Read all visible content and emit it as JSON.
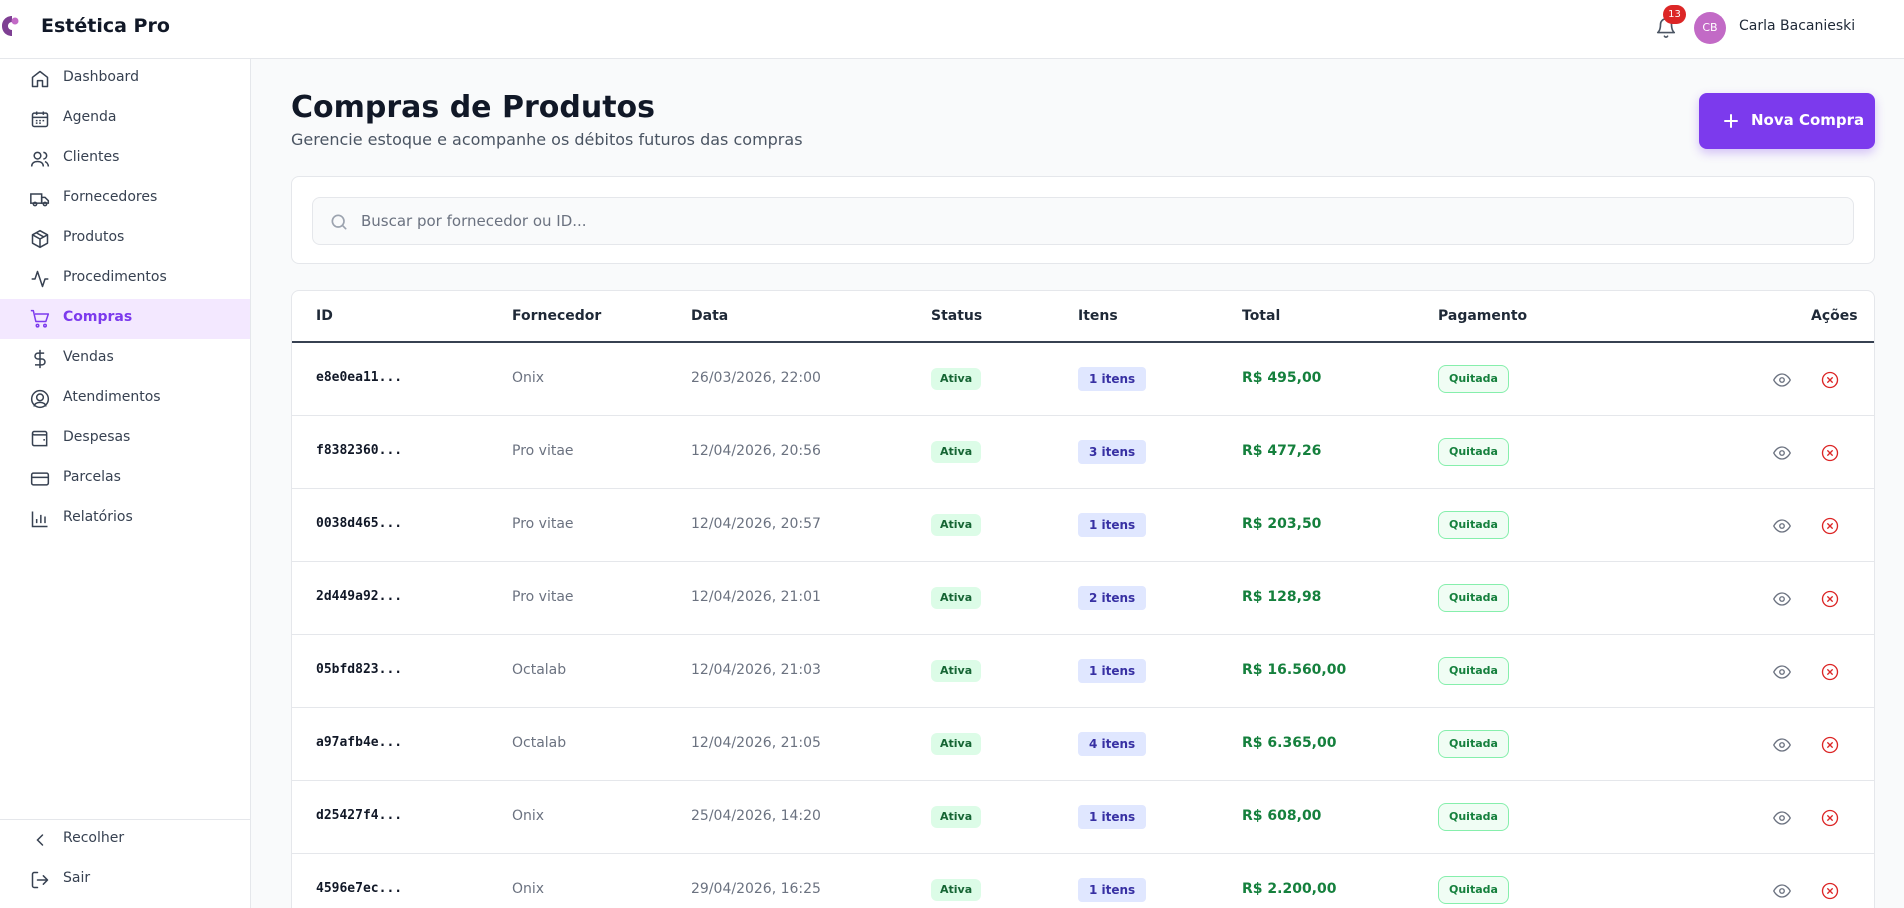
{
  "header": {
    "app_title": "Estética Pro",
    "notifications_count": "13",
    "user_initials": "CB",
    "user_name": "Carla Bacanieski"
  },
  "sidebar": {
    "items": [
      {
        "label": "Dashboard",
        "icon": "home-icon"
      },
      {
        "label": "Agenda",
        "icon": "calendar-icon"
      },
      {
        "label": "Clientes",
        "icon": "users-icon"
      },
      {
        "label": "Fornecedores",
        "icon": "truck-icon"
      },
      {
        "label": "Produtos",
        "icon": "package-icon"
      },
      {
        "label": "Procedimentos",
        "icon": "activity-icon"
      },
      {
        "label": "Compras",
        "icon": "cart-icon",
        "active": true
      },
      {
        "label": "Vendas",
        "icon": "dollar-icon"
      },
      {
        "label": "Atendimentos",
        "icon": "contact-icon"
      },
      {
        "label": "Despesas",
        "icon": "wallet-icon"
      },
      {
        "label": "Parcelas",
        "icon": "credit-card-icon"
      },
      {
        "label": "Relatórios",
        "icon": "bar-chart-icon"
      }
    ],
    "bottom": {
      "collapse_label": "Recolher",
      "logout_label": "Sair"
    }
  },
  "main": {
    "title": "Compras de Produtos",
    "subtitle": "Gerencie estoque e acompanhe os débitos futuros das compras",
    "new_button_label": "Nova Compra",
    "search_placeholder": "Buscar por fornecedor ou ID...",
    "table": {
      "columns": {
        "id": "ID",
        "fornecedor": "Fornecedor",
        "data": "Data",
        "status": "Status",
        "itens": "Itens",
        "total": "Total",
        "pagamento": "Pagamento",
        "acoes": "Ações"
      },
      "rows": [
        {
          "id": "e8e0ea11...",
          "fornecedor": "Onix",
          "data": "26/03/2026, 22:00",
          "status": "Ativa",
          "itens": "1 itens",
          "total": "R$ 495,00",
          "pagamento": "Quitada"
        },
        {
          "id": "f8382360...",
          "fornecedor": "Pro vitae",
          "data": "12/04/2026, 20:56",
          "status": "Ativa",
          "itens": "3 itens",
          "total": "R$ 477,26",
          "pagamento": "Quitada"
        },
        {
          "id": "0038d465...",
          "fornecedor": "Pro vitae",
          "data": "12/04/2026, 20:57",
          "status": "Ativa",
          "itens": "1 itens",
          "total": "R$ 203,50",
          "pagamento": "Quitada"
        },
        {
          "id": "2d449a92...",
          "fornecedor": "Pro vitae",
          "data": "12/04/2026, 21:01",
          "status": "Ativa",
          "itens": "2 itens",
          "total": "R$ 128,98",
          "pagamento": "Quitada"
        },
        {
          "id": "05bfd823...",
          "fornecedor": "Octalab",
          "data": "12/04/2026, 21:03",
          "status": "Ativa",
          "itens": "1 itens",
          "total": "R$ 16.560,00",
          "pagamento": "Quitada"
        },
        {
          "id": "a97afb4e...",
          "fornecedor": "Octalab",
          "data": "12/04/2026, 21:05",
          "status": "Ativa",
          "itens": "4 itens",
          "total": "R$ 6.365,00",
          "pagamento": "Quitada"
        },
        {
          "id": "d25427f4...",
          "fornecedor": "Onix",
          "data": "25/04/2026, 14:20",
          "status": "Ativa",
          "itens": "1 itens",
          "total": "R$ 608,00",
          "pagamento": "Quitada"
        },
        {
          "id": "4596e7ec...",
          "fornecedor": "Onix",
          "data": "29/04/2026, 16:25",
          "status": "Ativa",
          "itens": "1 itens",
          "total": "R$ 2.200,00",
          "pagamento": "Quitada"
        }
      ]
    }
  },
  "colors": {
    "accent": "#7c3aed",
    "success": "#15803d",
    "danger": "#dc2626"
  }
}
